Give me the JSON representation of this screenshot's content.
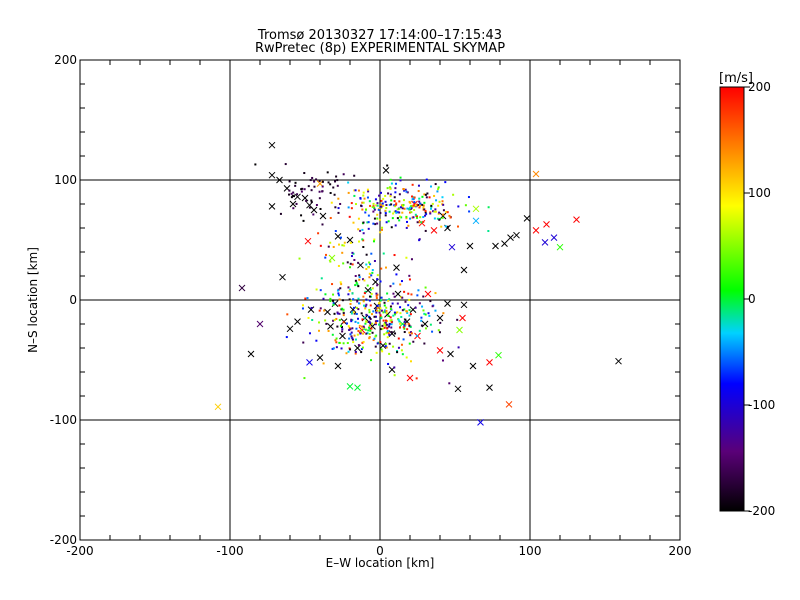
{
  "chart_data": {
    "type": "scatter",
    "title_line1": "Tromsø 20130327 17:14:00–17:15:43",
    "title_line2": "RwPretec (8p) EXPERIMENTAL SKYMAP",
    "xlabel": "E–W location [km]",
    "ylabel": "N–S location [km]",
    "xlim": [
      -200,
      200
    ],
    "ylim": [
      -200,
      200
    ],
    "xticks": [
      -200,
      -100,
      0,
      100,
      200
    ],
    "yticks": [
      -200,
      -100,
      0,
      100,
      200
    ],
    "x_tick_labels": [
      "-200",
      "-100",
      "0",
      "100",
      "200"
    ],
    "y_tick_labels": [
      "-200",
      "-100",
      "0",
      "100",
      "200"
    ],
    "grid_lines": [
      -100,
      0,
      100
    ],
    "colorbar": {
      "label": "[m/s]",
      "range": [
        -200,
        200
      ],
      "ticks": [
        200,
        100,
        0,
        -100,
        -200
      ],
      "tick_labels": [
        "200",
        "100",
        "0",
        "-100",
        "-200"
      ],
      "colormap": [
        "#000000",
        "#5a0078",
        "#0000ff",
        "#00d2ff",
        "#00ff00",
        "#ffff00",
        "#ff8000",
        "#ff0000"
      ]
    },
    "crosses": [
      {
        "x": -72,
        "y": 129,
        "v": -200
      },
      {
        "x": 4,
        "y": 108,
        "v": -200
      },
      {
        "x": -72,
        "y": 104,
        "v": -200
      },
      {
        "x": -72,
        "y": 78,
        "v": -200
      },
      {
        "x": -62,
        "y": 93,
        "v": -200
      },
      {
        "x": -55,
        "y": 86,
        "v": -200
      },
      {
        "x": -58,
        "y": 80,
        "v": -200
      },
      {
        "x": -50,
        "y": 85,
        "v": -200
      },
      {
        "x": -47,
        "y": 79,
        "v": -200
      },
      {
        "x": -44,
        "y": 75,
        "v": -200
      },
      {
        "x": -38,
        "y": 70,
        "v": -200
      },
      {
        "x": -67,
        "y": 100,
        "v": -200
      },
      {
        "x": -40,
        "y": 97,
        "v": 130
      },
      {
        "x": 104,
        "y": 105,
        "v": 140
      },
      {
        "x": 131,
        "y": 67,
        "v": 200
      },
      {
        "x": 111,
        "y": 63,
        "v": 200
      },
      {
        "x": -28,
        "y": 53,
        "v": -200
      },
      {
        "x": -20,
        "y": 50,
        "v": -200
      },
      {
        "x": -48,
        "y": 49,
        "v": 200
      },
      {
        "x": -32,
        "y": 35,
        "v": 50
      },
      {
        "x": -13,
        "y": 29,
        "v": -200
      },
      {
        "x": 11,
        "y": 27,
        "v": -200
      },
      {
        "x": -65,
        "y": 19,
        "v": -200
      },
      {
        "x": -92,
        "y": 10,
        "v": -170
      },
      {
        "x": -80,
        "y": -20,
        "v": -150
      },
      {
        "x": -86,
        "y": -45,
        "v": -200
      },
      {
        "x": -47,
        "y": -52,
        "v": -90
      },
      {
        "x": -40,
        "y": -48,
        "v": -200
      },
      {
        "x": -28,
        "y": -55,
        "v": -200
      },
      {
        "x": -20,
        "y": -72,
        "v": 0
      },
      {
        "x": 8,
        "y": -58,
        "v": -200
      },
      {
        "x": 20,
        "y": -65,
        "v": 200
      },
      {
        "x": 47,
        "y": -45,
        "v": -200
      },
      {
        "x": 40,
        "y": -42,
        "v": 200
      },
      {
        "x": 52,
        "y": -74,
        "v": -200
      },
      {
        "x": 62,
        "y": -55,
        "v": -200
      },
      {
        "x": 73,
        "y": -52,
        "v": 200
      },
      {
        "x": 73,
        "y": -73,
        "v": -200
      },
      {
        "x": 86,
        "y": -87,
        "v": 170
      },
      {
        "x": 67,
        "y": -102,
        "v": -90
      },
      {
        "x": 79,
        "y": -46,
        "v": 20
      },
      {
        "x": 56,
        "y": -4,
        "v": -200
      },
      {
        "x": 55,
        "y": -15,
        "v": 200
      },
      {
        "x": 53,
        "y": -25,
        "v": 50
      },
      {
        "x": 40,
        "y": -15,
        "v": -200
      },
      {
        "x": 32,
        "y": 5,
        "v": 200
      },
      {
        "x": 56,
        "y": 25,
        "v": -200
      },
      {
        "x": 60,
        "y": 45,
        "v": -200
      },
      {
        "x": 77,
        "y": 45,
        "v": -200
      },
      {
        "x": 83,
        "y": 47,
        "v": -200
      },
      {
        "x": 87,
        "y": 52,
        "v": -200
      },
      {
        "x": 91,
        "y": 54,
        "v": -200
      },
      {
        "x": 98,
        "y": 68,
        "v": -200
      },
      {
        "x": 104,
        "y": 58,
        "v": 200
      },
      {
        "x": 110,
        "y": 48,
        "v": -100
      },
      {
        "x": 116,
        "y": 52,
        "v": -100
      },
      {
        "x": 120,
        "y": 44,
        "v": 20
      },
      {
        "x": 48,
        "y": 44,
        "v": -100
      },
      {
        "x": 64,
        "y": 66,
        "v": -40
      },
      {
        "x": 64,
        "y": 76,
        "v": 60
      },
      {
        "x": 42,
        "y": 70,
        "v": -200
      },
      {
        "x": 45,
        "y": 60,
        "v": -200
      },
      {
        "x": 36,
        "y": 58,
        "v": 200
      },
      {
        "x": 28,
        "y": 64,
        "v": 200
      },
      {
        "x": 23,
        "y": 80,
        "v": 200
      },
      {
        "x": 159,
        "y": -51,
        "v": -200
      },
      {
        "x": -108,
        "y": -89,
        "v": 110
      },
      {
        "x": -46,
        "y": -8,
        "v": -200
      },
      {
        "x": -55,
        "y": -18,
        "v": -200
      },
      {
        "x": -60,
        "y": -24,
        "v": -200
      },
      {
        "x": -35,
        "y": -10,
        "v": -200
      },
      {
        "x": -33,
        "y": -22,
        "v": -200
      },
      {
        "x": -25,
        "y": -30,
        "v": -200
      },
      {
        "x": -18,
        "y": -8,
        "v": -200
      },
      {
        "x": -10,
        "y": -15,
        "v": -200
      },
      {
        "x": -5,
        "y": -22,
        "v": -200
      },
      {
        "x": -2,
        "y": -5,
        "v": -200
      },
      {
        "x": 5,
        "y": -12,
        "v": -200
      },
      {
        "x": 8,
        "y": -28,
        "v": -200
      },
      {
        "x": 12,
        "y": 5,
        "v": -200
      },
      {
        "x": -8,
        "y": 8,
        "v": -200
      },
      {
        "x": 15,
        "y": -20,
        "v": 0
      },
      {
        "x": 25,
        "y": -30,
        "v": 200
      },
      {
        "x": -15,
        "y": -40,
        "v": -200
      },
      {
        "x": 2,
        "y": -38,
        "v": -200
      },
      {
        "x": -30,
        "y": -3,
        "v": -200
      },
      {
        "x": 22,
        "y": -8,
        "v": -200
      },
      {
        "x": -12,
        "y": -25,
        "v": 200
      },
      {
        "x": 18,
        "y": -18,
        "v": -200
      },
      {
        "x": -3,
        "y": 15,
        "v": -200
      },
      {
        "x": -24,
        "y": -18,
        "v": -200
      },
      {
        "x": 30,
        "y": -20,
        "v": -200
      },
      {
        "x": -15,
        "y": -73,
        "v": 0
      },
      {
        "x": 45,
        "y": -3,
        "v": -200
      }
    ]
  }
}
